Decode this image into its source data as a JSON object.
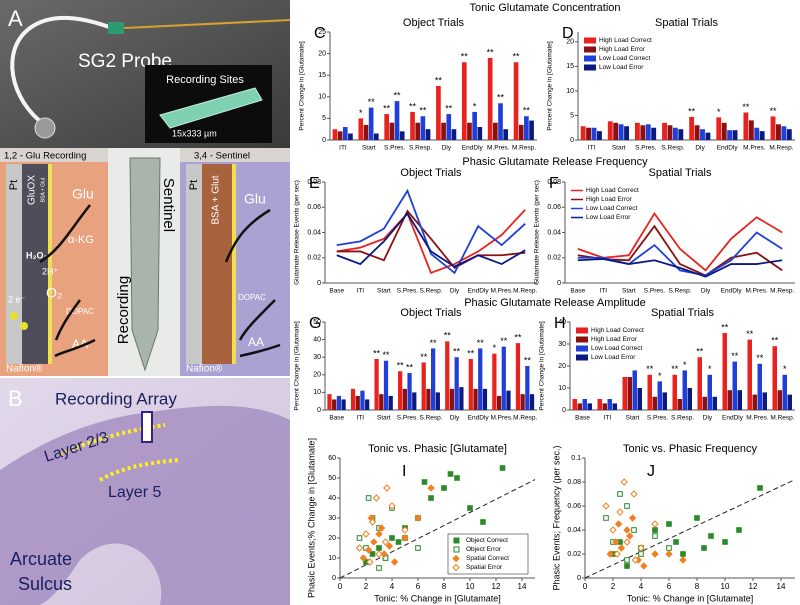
{
  "section_titles": [
    "Tonic Glutamate Concentration",
    "Phasic Glutamate Release Frequency",
    "Phasic Glutamate Release Amplitude"
  ],
  "panel_a": {
    "letter": "A",
    "probe": "SG2 Probe",
    "inset": "Recording Sites",
    "scale": "15x333 µm"
  },
  "schematic": {
    "recording_title": "1,2 - Glu Recording",
    "recording_labels": {
      "pt": "Pt",
      "enzyme": "GluOX",
      "coating": "BSA + Glut",
      "glu": "Glu",
      "h2o2": "H₂O₂",
      "akg": "α-KG",
      "h": "2H⁺",
      "o2": "O₂",
      "e": "2 e⁻",
      "dopac": "DOPAC",
      "aa": "AA",
      "nafion": "Nafion®"
    },
    "photo_labels": {
      "recording": "Recording",
      "sentinel": "Sentinel"
    },
    "sentinel_title": "3,4 - Sentinel",
    "sentinel_labels": {
      "pt": "Pt",
      "coating": "BSA + Glut",
      "glu": "Glu",
      "dopac": "DOPAC",
      "aa": "AA",
      "nafion": "Nafion®"
    }
  },
  "panel_b": {
    "letter": "B",
    "array": "Recording Array",
    "layer_23": "Layer 2/3",
    "layer_5": "Layer 5",
    "sulcus_1": "Arcuate",
    "sulcus_2": "Sulcus"
  },
  "chart_data": [
    {
      "type": "bar",
      "panel": "C",
      "title": "Object Trials",
      "ylabel": "Percent Change in [Glutamate]",
      "categories": [
        "ITI",
        "Start",
        "S.Pres.",
        "S.Resp.",
        "Dly",
        "EndDly",
        "M.Pres.",
        "M.Resp."
      ],
      "ylim": [
        0,
        25
      ],
      "yticks": [
        0,
        5,
        10,
        15,
        20,
        25
      ],
      "series": [
        {
          "color": "#e8231f",
          "values": [
            2.5,
            5,
            6,
            6.5,
            12.5,
            18,
            19,
            18
          ],
          "sig": [
            null,
            "*",
            "**",
            "**",
            "**",
            "**",
            "**",
            "**"
          ]
        },
        {
          "color": "#8b1010",
          "values": [
            2,
            3.5,
            4,
            4,
            4,
            4,
            4,
            3.5
          ]
        },
        {
          "color": "#1f3fd8",
          "values": [
            3,
            7.5,
            9,
            5.5,
            6,
            6.5,
            8.5,
            5.5
          ],
          "sig": [
            null,
            "**",
            "**",
            "**",
            "**",
            "*",
            "**",
            "**"
          ]
        },
        {
          "color": "#0b1a80",
          "values": [
            1.5,
            1.5,
            2,
            2.5,
            2.5,
            3,
            2.5,
            4.5
          ]
        }
      ]
    },
    {
      "type": "bar",
      "panel": "D",
      "title": "Spatial Trials",
      "ylabel": "Percent Change in [Glutamate]",
      "categories": [
        "ITI",
        "Start",
        "S.Pres.",
        "S.Resp.",
        "Dly",
        "EndDly",
        "M.Pres.",
        "M.Resp."
      ],
      "ylim": [
        0,
        22
      ],
      "yticks": [
        0,
        5,
        10,
        15,
        20
      ],
      "legend": "upper-left",
      "series": [
        {
          "name": "High Load Correct",
          "color": "#e8231f",
          "values": [
            2.8,
            3.8,
            3.5,
            3.5,
            4.7,
            4.6,
            5.6,
            4.8
          ],
          "sig": [
            null,
            null,
            null,
            null,
            "**",
            "*",
            "**",
            "**"
          ]
        },
        {
          "name": "High Load Error",
          "color": "#8b1010",
          "values": [
            2.5,
            3.5,
            3,
            3,
            3,
            3.5,
            4,
            3.2
          ]
        },
        {
          "name": "Low Load Correct",
          "color": "#1f3fd8",
          "values": [
            2.5,
            3.2,
            3.2,
            2.5,
            2.2,
            2,
            2.5,
            2.8
          ]
        },
        {
          "name": "Low Load Error",
          "color": "#0b1a80",
          "values": [
            1.8,
            2.8,
            2.5,
            2.2,
            1.5,
            2,
            1.8,
            2.2
          ]
        }
      ]
    },
    {
      "type": "line",
      "panel": "E",
      "title": "Object Trials",
      "ylabel": "Glutamate Release Events (per sec)",
      "categories": [
        "Base",
        "ITI",
        "Start",
        "S.Pres.",
        "S.Resp.",
        "Dly",
        "EndDly",
        "M.Pres.",
        "M.Resp."
      ],
      "ylim": [
        0,
        0.08
      ],
      "yticks": [
        0,
        0.02,
        0.04,
        0.06,
        0.08
      ],
      "series": [
        {
          "color": "#e8231f",
          "values": [
            0.025,
            0.028,
            0.035,
            0.055,
            0.008,
            0.015,
            0.025,
            0.038,
            0.058
          ]
        },
        {
          "color": "#8b1010",
          "values": [
            0.025,
            0.025,
            0.018,
            0.057,
            0.035,
            0.012,
            0.022,
            0.022,
            0.024
          ]
        },
        {
          "color": "#1f3fd8",
          "values": [
            0.03,
            0.033,
            0.043,
            0.073,
            0.023,
            0.008,
            0.045,
            0.03,
            0.047
          ]
        },
        {
          "color": "#0b1a80",
          "values": [
            0.022,
            0.015,
            0.033,
            0.055,
            0.025,
            0.013,
            0.022,
            0.015,
            0.026
          ]
        }
      ]
    },
    {
      "type": "line",
      "panel": "F",
      "title": "Spatial Trials",
      "ylabel": "Glutamate Release Events (per sec)",
      "categories": [
        "Base",
        "ITI",
        "Start",
        "S.Pres.",
        "S.Resp.",
        "Dly",
        "EndDly",
        "M.Pres.",
        "M.Resp."
      ],
      "ylim": [
        0,
        0.08
      ],
      "yticks": [
        0,
        0.02,
        0.04,
        0.06,
        0.08
      ],
      "legend": "upper-left",
      "series": [
        {
          "name": "High Load Correct",
          "color": "#e8231f",
          "values": [
            0.027,
            0.02,
            0.022,
            0.055,
            0.027,
            0.01,
            0.035,
            0.052,
            0.04
          ]
        },
        {
          "name": "High Load Error",
          "color": "#8b1010",
          "values": [
            0.022,
            0.019,
            0.018,
            0.045,
            0.015,
            0.006,
            0.02,
            0.024,
            0.01
          ]
        },
        {
          "name": "Low Load Correct",
          "color": "#1f3fd8",
          "values": [
            0.02,
            0.02,
            0.015,
            0.03,
            0.01,
            0.006,
            0.018,
            0.04,
            0.027
          ]
        },
        {
          "name": "Low Load Error",
          "color": "#0b1a80",
          "values": [
            0.018,
            0.019,
            0.015,
            0.018,
            0.012,
            0.005,
            0.015,
            0.015,
            0.018
          ]
        }
      ]
    },
    {
      "type": "bar",
      "panel": "G",
      "title": "Object Trials",
      "ylabel": "Percent Change in [Glutamate]",
      "categories": [
        "Base",
        "ITI",
        "Start",
        "S.Pres.",
        "S.Resp.",
        "Dly",
        "EndDly",
        "M.Pres.",
        "M.Resp."
      ],
      "ylim": [
        0,
        50
      ],
      "yticks": [
        0,
        10,
        20,
        30,
        40,
        50
      ],
      "series": [
        {
          "color": "#e8231f",
          "values": [
            9,
            12,
            29,
            22,
            27,
            39,
            29,
            32,
            38
          ],
          "sig": [
            null,
            null,
            "**",
            "**",
            "**",
            "**",
            "**",
            "*",
            "**"
          ]
        },
        {
          "color": "#8b1010",
          "values": [
            6,
            8,
            9,
            12,
            12,
            12,
            12,
            8,
            9
          ]
        },
        {
          "color": "#1f3fd8",
          "values": [
            8,
            11,
            28,
            21,
            35,
            30,
            35,
            36,
            25
          ],
          "sig": [
            null,
            null,
            "**",
            "**",
            "**",
            "**",
            "**",
            "**",
            "**"
          ]
        },
        {
          "color": "#0b1a80",
          "values": [
            6,
            6,
            8,
            10,
            10,
            13,
            12,
            11,
            9
          ]
        }
      ]
    },
    {
      "type": "bar",
      "panel": "H",
      "title": "Spatial Trials",
      "ylabel": "Percent Change in [Glutamate]",
      "categories": [
        "Base",
        "ITI",
        "Start",
        "S.Pres.",
        "S.Resp.",
        "Dly",
        "EndDly",
        "M.Pres.",
        "M.Resp."
      ],
      "ylim": [
        0,
        40
      ],
      "yticks": [
        0,
        10,
        20,
        30,
        40
      ],
      "legend": "upper-left",
      "series": [
        {
          "name": "High Load Correct",
          "color": "#e8231f",
          "values": [
            5,
            5,
            15,
            16,
            16,
            24,
            35,
            32,
            29
          ],
          "sig": [
            null,
            null,
            null,
            "**",
            "**",
            "**",
            "**",
            "**",
            "**"
          ]
        },
        {
          "name": "High Load Error",
          "color": "#8b1010",
          "values": [
            3,
            3,
            15,
            6,
            5,
            6,
            9,
            7,
            9
          ]
        },
        {
          "name": "Low Load Correct",
          "color": "#1f3fd8",
          "values": [
            5,
            5,
            18,
            13,
            18,
            16,
            22,
            21,
            16
          ],
          "sig": [
            null,
            null,
            null,
            "*",
            "*",
            "*",
            "**",
            "**",
            "*"
          ]
        },
        {
          "name": "Low Load Error",
          "color": "#0b1a80",
          "values": [
            3,
            3,
            10,
            8,
            10,
            6,
            9,
            8,
            7
          ]
        }
      ]
    },
    {
      "type": "scatter",
      "panel": "I",
      "title": "Tonic vs. Phasic [Glutamate]",
      "xlabel": "Tonic: % Change in [Glutamate]",
      "ylabel": "Phasic Events;% Change in [Glutamate]",
      "xlim": [
        0,
        15
      ],
      "xticks": [
        0,
        2,
        4,
        6,
        8,
        10,
        12,
        14
      ],
      "ylim": [
        0,
        60
      ],
      "yticks": [
        0,
        10,
        20,
        30,
        40,
        50,
        60
      ],
      "legend": "lower-right",
      "series": [
        {
          "name": "Object Correct",
          "color": "#2a8a2a",
          "marker": "square",
          "filled": true,
          "x": [
            2,
            2.5,
            3,
            3.5,
            4,
            5,
            6,
            7,
            8,
            9,
            10,
            11,
            6.5,
            8.5,
            4.5,
            12.5
          ],
          "values": [
            8,
            12,
            15,
            10,
            20,
            25,
            30,
            40,
            45,
            50,
            35,
            28,
            48,
            52,
            18,
            55
          ]
        },
        {
          "name": "Object Error",
          "color": "#2a8a2a",
          "marker": "square",
          "filled": false,
          "x": [
            1.5,
            2,
            2.5,
            3,
            3.5,
            4,
            5,
            6,
            3,
            2.2
          ],
          "values": [
            20,
            15,
            30,
            25,
            10,
            35,
            20,
            15,
            5,
            40
          ]
        },
        {
          "name": "Spatial Correct",
          "color": "#f08020",
          "marker": "diamond",
          "filled": true,
          "x": [
            1.8,
            2.2,
            2.6,
            3,
            3.4,
            3.8,
            4.2,
            5,
            2.4,
            3.2,
            6,
            7
          ],
          "values": [
            10,
            14,
            18,
            22,
            12,
            16,
            8,
            20,
            30,
            25,
            30,
            45
          ]
        },
        {
          "name": "Spatial Error",
          "color": "#f08020",
          "marker": "diamond",
          "filled": false,
          "x": [
            1.5,
            2,
            2.5,
            3,
            3.5,
            4,
            2.8,
            2.3,
            5,
            3.6
          ],
          "values": [
            15,
            22,
            28,
            12,
            18,
            36,
            40,
            8,
            24,
            45
          ]
        }
      ]
    },
    {
      "type": "scatter",
      "panel": "J",
      "title": "Tonic vs. Phasic Frequency",
      "xlabel": "Tonic: % Change in [Glutamate]",
      "ylabel": "Phasic Events; Frequency (per sec.)",
      "xlim": [
        0,
        15
      ],
      "xticks": [
        0,
        2,
        4,
        6,
        8,
        10,
        12,
        14
      ],
      "ylim": [
        0,
        0.1
      ],
      "yticks": [
        0,
        0.02,
        0.04,
        0.06,
        0.08,
        0.1
      ],
      "series": [
        {
          "color": "#2a8a2a",
          "marker": "square",
          "filled": true,
          "x": [
            2,
            2.5,
            3,
            4,
            5,
            6,
            7,
            8,
            9,
            10,
            11,
            12.5,
            6.5,
            8.5
          ],
          "values": [
            0.02,
            0.03,
            0.01,
            0.025,
            0.04,
            0.045,
            0.02,
            0.05,
            0.035,
            0.03,
            0.04,
            0.075,
            0.03,
            0.025
          ]
        },
        {
          "color": "#2a8a2a",
          "marker": "square",
          "filled": false,
          "x": [
            1.5,
            2,
            2.5,
            3,
            3.5,
            4,
            5,
            6,
            3
          ],
          "values": [
            0.05,
            0.03,
            0.07,
            0.06,
            0.04,
            0.02,
            0.035,
            0.025,
            0.015
          ]
        },
        {
          "color": "#f08020",
          "marker": "diamond",
          "filled": true,
          "x": [
            1.8,
            2.2,
            2.6,
            3,
            3.4,
            3.8,
            4.2,
            5,
            2.4,
            3.2,
            6,
            7
          ],
          "values": [
            0.02,
            0.03,
            0.025,
            0.04,
            0.05,
            0.015,
            0.01,
            0.02,
            0.045,
            0.035,
            0.02,
            0.015
          ]
        },
        {
          "color": "#f08020",
          "marker": "diamond",
          "filled": false,
          "x": [
            1.5,
            2,
            2.5,
            3,
            3.5,
            4,
            2.8,
            2.3,
            5,
            3.6
          ],
          "values": [
            0.06,
            0.04,
            0.055,
            0.03,
            0.07,
            0.025,
            0.08,
            0.02,
            0.045,
            0.015
          ]
        }
      ]
    }
  ]
}
